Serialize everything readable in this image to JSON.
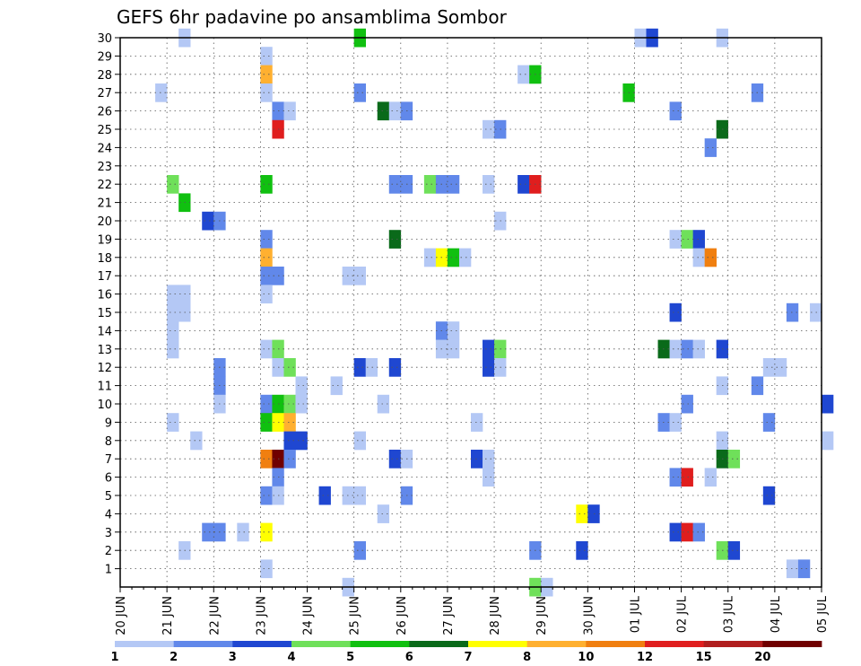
{
  "chart_data": {
    "type": "heatmap",
    "title": "GEFS 6hr padavine po ansamblima Sombor",
    "xlabel": "",
    "ylabel": "",
    "x_ticks": [
      "20 JUN",
      "21 JUN",
      "22 JUN",
      "23 JUN",
      "24 JUN",
      "25 JUN",
      "26 JUN",
      "27 JUN",
      "28 JUN",
      "29 JUN",
      "30 JUN",
      "01 JUL",
      "02 JUL",
      "03 JUL",
      "04 JUL",
      "05 JUL"
    ],
    "y_ticks": [
      "1",
      "2",
      "3",
      "4",
      "5",
      "6",
      "7",
      "8",
      "9",
      "10",
      "11",
      "12",
      "13",
      "14",
      "15",
      "16",
      "17",
      "18",
      "19",
      "20",
      "21",
      "22",
      "23",
      "24",
      "25",
      "26",
      "27",
      "28",
      "29",
      "30"
    ],
    "ylim": [
      0,
      30
    ],
    "time_step_hours": 6,
    "grid": true,
    "colorbar": {
      "labels": [
        "1",
        "2",
        "3",
        "4",
        "5",
        "6",
        "7",
        "8",
        "10",
        "12",
        "15",
        "20"
      ],
      "colors": [
        "#b4c8f5",
        "#6188ea",
        "#1f47d1",
        "#6fe05a",
        "#10c010",
        "#0a6a1a",
        "#ffff00",
        "#ffb030",
        "#f07f10",
        "#e01e1e",
        "#b01e1e",
        "#700000"
      ]
    },
    "cells": [
      {
        "time": "21 JUN 06",
        "member": 30,
        "level": 0
      },
      {
        "time": "25 JUN 00",
        "member": 30,
        "level": 4
      },
      {
        "time": "01 JUL 00",
        "member": 30,
        "level": 0
      },
      {
        "time": "01 JUL 06",
        "member": 30,
        "level": 2
      },
      {
        "time": "02 JUL 18",
        "member": 30,
        "level": 0
      },
      {
        "time": "23 JUN 00",
        "member": 29,
        "level": 0
      },
      {
        "time": "23 JUN 00",
        "member": 28,
        "level": 7
      },
      {
        "time": "28 JUN 12",
        "member": 28,
        "level": 0
      },
      {
        "time": "28 JUN 18",
        "member": 28,
        "level": 4
      },
      {
        "time": "20 JUN 18",
        "member": 27,
        "level": 0
      },
      {
        "time": "23 JUN 00",
        "member": 27,
        "level": 0
      },
      {
        "time": "25 JUN 00",
        "member": 27,
        "level": 1
      },
      {
        "time": "30 JUN 18",
        "member": 27,
        "level": 4
      },
      {
        "time": "03 JUL 12",
        "member": 27,
        "level": 1
      },
      {
        "time": "23 JUN 06",
        "member": 26,
        "level": 1
      },
      {
        "time": "23 JUN 12",
        "member": 26,
        "level": 0
      },
      {
        "time": "25 JUN 12",
        "member": 26,
        "level": 5
      },
      {
        "time": "25 JUN 18",
        "member": 26,
        "level": 0
      },
      {
        "time": "26 JUN 00",
        "member": 26,
        "level": 1
      },
      {
        "time": "01 JUL 18",
        "member": 26,
        "level": 1
      },
      {
        "time": "23 JUN 06",
        "member": 25,
        "level": 9
      },
      {
        "time": "27 JUN 18",
        "member": 25,
        "level": 0
      },
      {
        "time": "28 JUN 00",
        "member": 25,
        "level": 1
      },
      {
        "time": "02 JUL 18",
        "member": 25,
        "level": 5
      },
      {
        "time": "02 JUL 12",
        "member": 24,
        "level": 1
      },
      {
        "time": "21 JUN 00",
        "member": 22,
        "level": 3
      },
      {
        "time": "23 JUN 00",
        "member": 22,
        "level": 4
      },
      {
        "time": "25 JUN 18",
        "member": 22,
        "level": 1
      },
      {
        "time": "26 JUN 00",
        "member": 22,
        "level": 1
      },
      {
        "time": "26 JUN 12",
        "member": 22,
        "level": 3
      },
      {
        "time": "26 JUN 18",
        "member": 22,
        "level": 1
      },
      {
        "time": "27 JUN 00",
        "member": 22,
        "level": 1
      },
      {
        "time": "27 JUN 18",
        "member": 22,
        "level": 0
      },
      {
        "time": "28 JUN 12",
        "member": 22,
        "level": 2
      },
      {
        "time": "28 JUN 18",
        "member": 22,
        "level": 9
      },
      {
        "time": "21 JUN 06",
        "member": 21,
        "level": 4
      },
      {
        "time": "21 JUN 18",
        "member": 20,
        "level": 2
      },
      {
        "time": "22 JUN 00",
        "member": 20,
        "level": 1
      },
      {
        "time": "28 JUN 00",
        "member": 20,
        "level": 0
      },
      {
        "time": "23 JUN 00",
        "member": 19,
        "level": 1
      },
      {
        "time": "25 JUN 18",
        "member": 19,
        "level": 5
      },
      {
        "time": "01 JUL 18",
        "member": 19,
        "level": 0
      },
      {
        "time": "02 JUL 00",
        "member": 19,
        "level": 3
      },
      {
        "time": "02 JUL 06",
        "member": 19,
        "level": 2
      },
      {
        "time": "23 JUN 00",
        "member": 18,
        "level": 7
      },
      {
        "time": "26 JUN 12",
        "member": 18,
        "level": 0
      },
      {
        "time": "26 JUN 18",
        "member": 18,
        "level": 6
      },
      {
        "time": "27 JUN 00",
        "member": 18,
        "level": 4
      },
      {
        "time": "27 JUN 06",
        "member": 18,
        "level": 0
      },
      {
        "time": "02 JUL 06",
        "member": 18,
        "level": 0
      },
      {
        "time": "02 JUL 12",
        "member": 18,
        "level": 8
      },
      {
        "time": "23 JUN 00",
        "member": 17,
        "level": 1
      },
      {
        "time": "23 JUN 06",
        "member": 17,
        "level": 1
      },
      {
        "time": "24 JUN 18",
        "member": 17,
        "level": 0
      },
      {
        "time": "25 JUN 00",
        "member": 17,
        "level": 0
      },
      {
        "time": "21 JUN 00",
        "member": 16,
        "level": 0
      },
      {
        "time": "21 JUN 06",
        "member": 16,
        "level": 0
      },
      {
        "time": "23 JUN 00",
        "member": 16,
        "level": 0
      },
      {
        "time": "21 JUN 00",
        "member": 15,
        "level": 0
      },
      {
        "time": "21 JUN 06",
        "member": 15,
        "level": 0
      },
      {
        "time": "01 JUL 18",
        "member": 15,
        "level": 2
      },
      {
        "time": "04 JUL 06",
        "member": 15,
        "level": 1
      },
      {
        "time": "04 JUL 18",
        "member": 15,
        "level": 0
      },
      {
        "time": "21 JUN 00",
        "member": 14,
        "level": 0
      },
      {
        "time": "26 JUN 18",
        "member": 14,
        "level": 1
      },
      {
        "time": "27 JUN 00",
        "member": 14,
        "level": 0
      },
      {
        "time": "21 JUN 00",
        "member": 13,
        "level": 0
      },
      {
        "time": "23 JUN 00",
        "member": 13,
        "level": 0
      },
      {
        "time": "23 JUN 06",
        "member": 13,
        "level": 3
      },
      {
        "time": "26 JUN 18",
        "member": 13,
        "level": 0
      },
      {
        "time": "27 JUN 00",
        "member": 13,
        "level": 0
      },
      {
        "time": "27 JUN 18",
        "member": 13,
        "level": 2
      },
      {
        "time": "28 JUN 00",
        "member": 13,
        "level": 3
      },
      {
        "time": "01 JUL 12",
        "member": 13,
        "level": 5
      },
      {
        "time": "01 JUL 18",
        "member": 13,
        "level": 0
      },
      {
        "time": "02 JUL 00",
        "member": 13,
        "level": 1
      },
      {
        "time": "02 JUL 06",
        "member": 13,
        "level": 0
      },
      {
        "time": "02 JUL 18",
        "member": 13,
        "level": 2
      },
      {
        "time": "22 JUN 00",
        "member": 12,
        "level": 1
      },
      {
        "time": "23 JUN 06",
        "member": 12,
        "level": 0
      },
      {
        "time": "23 JUN 12",
        "member": 12,
        "level": 3
      },
      {
        "time": "25 JUN 00",
        "member": 12,
        "level": 2
      },
      {
        "time": "25 JUN 06",
        "member": 12,
        "level": 0
      },
      {
        "time": "25 JUN 18",
        "member": 12,
        "level": 2
      },
      {
        "time": "27 JUN 18",
        "member": 12,
        "level": 2
      },
      {
        "time": "28 JUN 00",
        "member": 12,
        "level": 0
      },
      {
        "time": "03 JUL 18",
        "member": 12,
        "level": 0
      },
      {
        "time": "04 JUL 00",
        "member": 12,
        "level": 0
      },
      {
        "time": "22 JUN 00",
        "member": 11,
        "level": 1
      },
      {
        "time": "23 JUN 18",
        "member": 11,
        "level": 0
      },
      {
        "time": "24 JUN 12",
        "member": 11,
        "level": 0
      },
      {
        "time": "02 JUL 18",
        "member": 11,
        "level": 0
      },
      {
        "time": "03 JUL 12",
        "member": 11,
        "level": 1
      },
      {
        "time": "22 JUN 00",
        "member": 10,
        "level": 0
      },
      {
        "time": "23 JUN 00",
        "member": 10,
        "level": 1
      },
      {
        "time": "23 JUN 06",
        "member": 10,
        "level": 4
      },
      {
        "time": "23 JUN 12",
        "member": 10,
        "level": 3
      },
      {
        "time": "23 JUN 18",
        "member": 10,
        "level": 0
      },
      {
        "time": "25 JUN 12",
        "member": 10,
        "level": 0
      },
      {
        "time": "02 JUL 00",
        "member": 10,
        "level": 1
      },
      {
        "time": "05 JUL 00",
        "member": 10,
        "level": 2
      },
      {
        "time": "21 JUN 00",
        "member": 9,
        "level": 0
      },
      {
        "time": "23 JUN 00",
        "member": 9,
        "level": 4
      },
      {
        "time": "23 JUN 06",
        "member": 9,
        "level": 6
      },
      {
        "time": "23 JUN 12",
        "member": 9,
        "level": 7
      },
      {
        "time": "27 JUN 12",
        "member": 9,
        "level": 0
      },
      {
        "time": "01 JUL 12",
        "member": 9,
        "level": 1
      },
      {
        "time": "01 JUL 18",
        "member": 9,
        "level": 0
      },
      {
        "time": "03 JUL 18",
        "member": 9,
        "level": 1
      },
      {
        "time": "21 JUN 12",
        "member": 8,
        "level": 0
      },
      {
        "time": "23 JUN 12",
        "member": 8,
        "level": 2
      },
      {
        "time": "23 JUN 18",
        "member": 8,
        "level": 2
      },
      {
        "time": "25 JUN 00",
        "member": 8,
        "level": 0
      },
      {
        "time": "02 JUL 18",
        "member": 8,
        "level": 0
      },
      {
        "time": "05 JUL 00",
        "member": 8,
        "level": 0
      },
      {
        "time": "23 JUN 00",
        "member": 7,
        "level": 8
      },
      {
        "time": "23 JUN 06",
        "member": 7,
        "level": 11
      },
      {
        "time": "23 JUN 12",
        "member": 7,
        "level": 1
      },
      {
        "time": "25 JUN 18",
        "member": 7,
        "level": 2
      },
      {
        "time": "26 JUN 00",
        "member": 7,
        "level": 0
      },
      {
        "time": "27 JUN 12",
        "member": 7,
        "level": 2
      },
      {
        "time": "27 JUN 18",
        "member": 7,
        "level": 0
      },
      {
        "time": "02 JUL 18",
        "member": 7,
        "level": 5
      },
      {
        "time": "03 JUL 00",
        "member": 7,
        "level": 3
      },
      {
        "time": "23 JUN 06",
        "member": 6,
        "level": 1
      },
      {
        "time": "27 JUN 18",
        "member": 6,
        "level": 0
      },
      {
        "time": "01 JUL 18",
        "member": 6,
        "level": 1
      },
      {
        "time": "02 JUL 00",
        "member": 6,
        "level": 9
      },
      {
        "time": "02 JUL 12",
        "member": 6,
        "level": 0
      },
      {
        "time": "23 JUN 00",
        "member": 5,
        "level": 1
      },
      {
        "time": "23 JUN 06",
        "member": 5,
        "level": 0
      },
      {
        "time": "24 JUN 06",
        "member": 5,
        "level": 2
      },
      {
        "time": "24 JUN 18",
        "member": 5,
        "level": 0
      },
      {
        "time": "25 JUN 00",
        "member": 5,
        "level": 0
      },
      {
        "time": "26 JUN 00",
        "member": 5,
        "level": 1
      },
      {
        "time": "03 JUL 18",
        "member": 5,
        "level": 2
      },
      {
        "time": "25 JUN 12",
        "member": 4,
        "level": 0
      },
      {
        "time": "29 JUN 18",
        "member": 4,
        "level": 6
      },
      {
        "time": "30 JUN 00",
        "member": 4,
        "level": 2
      },
      {
        "time": "21 JUN 18",
        "member": 3,
        "level": 1
      },
      {
        "time": "22 JUN 00",
        "member": 3,
        "level": 1
      },
      {
        "time": "22 JUN 12",
        "member": 3,
        "level": 0
      },
      {
        "time": "23 JUN 00",
        "member": 3,
        "level": 6
      },
      {
        "time": "01 JUL 18",
        "member": 3,
        "level": 2
      },
      {
        "time": "02 JUL 00",
        "member": 3,
        "level": 9
      },
      {
        "time": "02 JUL 06",
        "member": 3,
        "level": 1
      },
      {
        "time": "21 JUN 06",
        "member": 2,
        "level": 0
      },
      {
        "time": "25 JUN 00",
        "member": 2,
        "level": 1
      },
      {
        "time": "28 JUN 18",
        "member": 2,
        "level": 1
      },
      {
        "time": "29 JUN 18",
        "member": 2,
        "level": 2
      },
      {
        "time": "02 JUL 18",
        "member": 2,
        "level": 3
      },
      {
        "time": "03 JUL 00",
        "member": 2,
        "level": 2
      },
      {
        "time": "23 JUN 00",
        "member": 1,
        "level": 0
      },
      {
        "time": "04 JUL 06",
        "member": 1,
        "level": 0
      },
      {
        "time": "04 JUL 12",
        "member": 1,
        "level": 1
      },
      {
        "time": "24 JUN 18",
        "member": 0,
        "level": 0
      },
      {
        "time": "28 JUN 18",
        "member": 0,
        "level": 3
      },
      {
        "time": "29 JUN 00",
        "member": 0,
        "level": 0
      }
    ]
  }
}
